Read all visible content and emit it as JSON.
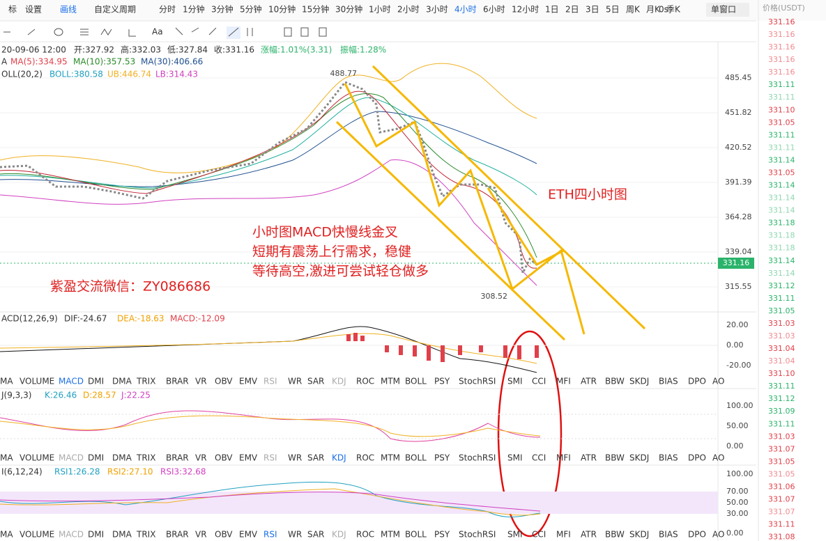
{
  "toolbar": {
    "items": [
      "标",
      "设置",
      "画线",
      "自定义周期"
    ],
    "intervals": [
      "分时",
      "1分钟",
      "3分钟",
      "5分钟",
      "10分钟",
      "15分钟",
      "30分钟",
      "1小时",
      "2小时",
      "3小时",
      "4小时",
      "6小时",
      "12小时",
      "1日",
      "2日",
      "3日",
      "5日",
      "周K",
      "月K",
      "季K"
    ],
    "active_interval": 10,
    "clock": "0s",
    "window": "单窗口"
  },
  "info": {
    "date": "20-09-06 12:00",
    "open": "开:327.92",
    "high": "高:332.03",
    "low": "低:327.84",
    "close": "收:331.16",
    "change": "涨幅:1.01%(3.31)",
    "amplitude": "振幅:1.28%"
  },
  "ma": {
    "label": "A",
    "ma5": "MA(5):334.95",
    "ma10": "MA(10):357.53",
    "ma30": "MA(30):406.66"
  },
  "boll": {
    "label": "OLL(20,2)",
    "boll": "BOLL:380.58",
    "ub": "UB:446.74",
    "lb": "LB:314.43"
  },
  "price_axis": {
    "ticks": [
      "485.45",
      "451.82",
      "420.52",
      "391.39",
      "364.28",
      "339.04",
      "315.55"
    ],
    "current": "331.16",
    "high_marker": "488.77",
    "low_marker": "308.52"
  },
  "annotations": {
    "title": "ETH四小时图",
    "line1": "小时图MACD快慢线金叉",
    "line2": "短期有震荡上行需求，稳健",
    "line3": "等待高空,激进可尝试轻仓做多",
    "contact": "紫盈交流微信：ZY086686"
  },
  "macd": {
    "label": "ACD(12,26,9)",
    "dif": "DIF:-24.67",
    "dea": "DEA:-18.63",
    "macd": "MACD:-12.09",
    "ticks": [
      "20.00",
      "0.00",
      "-20.00"
    ]
  },
  "kdj": {
    "label": "J(9,3,3)",
    "k": "K:26.46",
    "d": "D:28.57",
    "j": "J:22.25",
    "ticks": [
      "100.00",
      "50.00",
      "0.00"
    ]
  },
  "rsi": {
    "label": "I(6,12,24)",
    "rsi1": "RSI1:26.28",
    "rsi2": "RSI2:27.10",
    "rsi3": "RSI3:32.68",
    "ticks": [
      "100.00",
      "70.00",
      "50.00",
      "30.00",
      "0.00"
    ]
  },
  "tabs": [
    "MA",
    "VOLUME",
    "MACD",
    "DMI",
    "DMA",
    "TRIX",
    "BRAR",
    "VR",
    "OBV",
    "EMV",
    "RSI",
    "WR",
    "SAR",
    "KDJ",
    "ROC",
    "MTM",
    "BOLL",
    "PSY",
    "StochRSI",
    "SMI",
    "CCI",
    "MFI",
    "ATR",
    "BBW",
    "SKDJ",
    "BIAS",
    "DPO",
    "AO"
  ],
  "trades": {
    "header": "价格(USDT)",
    "prices": [
      "331.16",
      "331.16",
      "331.16",
      "331.16",
      "331.16",
      "331.11",
      "331.11",
      "331.10",
      "331.05",
      "331.11",
      "331.11",
      "331.14",
      "331.05",
      "331.14",
      "331.14",
      "331.14",
      "331.18",
      "331.18",
      "331.18",
      "331.14",
      "331.14",
      "331.12",
      "331.11",
      "331.05",
      "331.03",
      "331.03",
      "331.04",
      "331.04",
      "331.10",
      "331.11",
      "331.12",
      "331.09",
      "331.11",
      "331.03",
      "331.07",
      "331.05",
      "331.05",
      "331.06",
      "331.07",
      "331.07",
      "331.11",
      "331.08"
    ],
    "colors": [
      "#e0404a",
      "#f08a90",
      "#f08a90",
      "#f08a90",
      "#f08a90",
      "#2bb36b",
      "#8fd6b0",
      "#e0404a",
      "#e0404a",
      "#2bb36b",
      "#8fd6b0",
      "#2bb36b",
      "#e0404a",
      "#2bb36b",
      "#8fd6b0",
      "#8fd6b0",
      "#2bb36b",
      "#8fd6b0",
      "#8fd6b0",
      "#2bb36b",
      "#8fd6b0",
      "#2bb36b",
      "#2bb36b",
      "#2bb36b",
      "#e0404a",
      "#f08a90",
      "#e0404a",
      "#f08a90",
      "#e0404a",
      "#2bb36b",
      "#2bb36b",
      "#2bb36b",
      "#2bb36b",
      "#e0404a",
      "#e0404a",
      "#e0404a",
      "#f08a90",
      "#e0404a",
      "#e0404a",
      "#f08a90",
      "#e0404a",
      "#e0404a"
    ]
  }
}
